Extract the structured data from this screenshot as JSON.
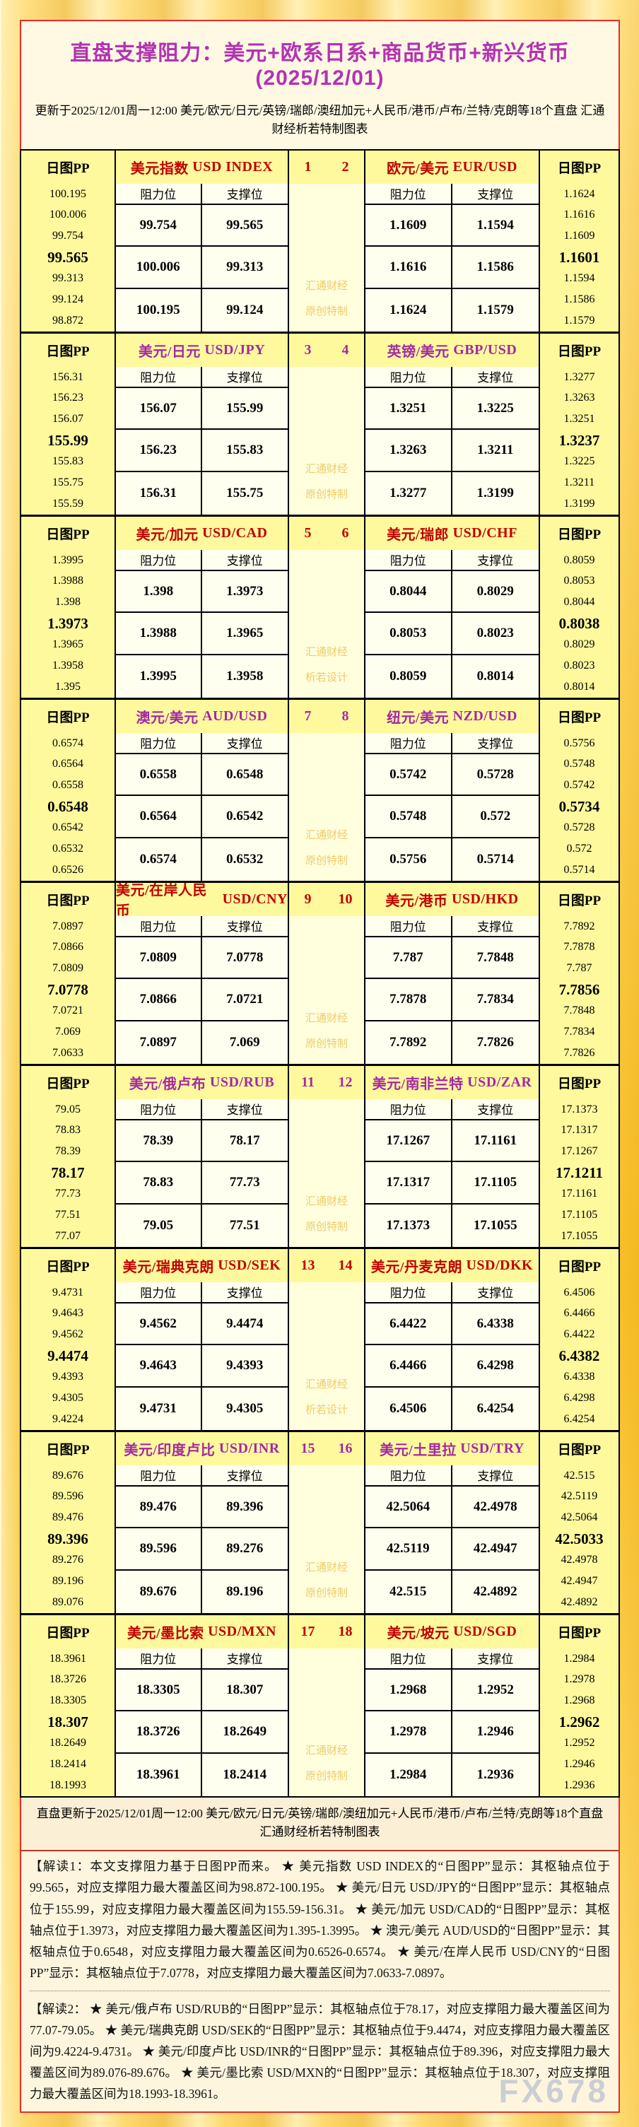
{
  "title": "直盘支撑阻力：美元+欧系日系+商品货币+新兴货币(2025/12/01)",
  "subtitle": "更新于2025/12/01周一12:00 美元/欧元/日元/英镑/瑞郎/澳纽加元+人民币/港币/卢布/兰特/克朗等18个直盘 汇通财经析若特制图表",
  "labels": {
    "pp": "日图PP",
    "resistance": "阻力位",
    "support": "支撑位",
    "watermark_line1": "汇通财经",
    "brand_watermark": "FX678"
  },
  "colors": {
    "red_accent": "#C00000",
    "purple_accent": "#A329A3",
    "title_purple": "#B233B2",
    "header_bg": "#FFF99E",
    "cell_bg": "#FFFFF0",
    "center_bg": "#FFFFDE",
    "watermark_gold": "#EDCB6B",
    "frame_border": "#E42E2E",
    "page_gold": "#F7BE24"
  },
  "blocks": [
    {
      "num_left": "1",
      "num_right": "2",
      "color": "red",
      "watermark_line2": "原创特制",
      "left": {
        "name_cn": "美元指数",
        "name_en": "USD INDEX",
        "pp": [
          "100.195",
          "100.006",
          "99.754",
          "99.565",
          "99.313",
          "99.124",
          "98.872"
        ],
        "rows": [
          [
            "99.754",
            "99.565"
          ],
          [
            "100.006",
            "99.313"
          ],
          [
            "100.195",
            "99.124"
          ]
        ]
      },
      "right": {
        "name_cn": "欧元/美元",
        "name_en": "EUR/USD",
        "pp": [
          "1.1624",
          "1.1616",
          "1.1609",
          "1.1601",
          "1.1594",
          "1.1586",
          "1.1579"
        ],
        "rows": [
          [
            "1.1609",
            "1.1594"
          ],
          [
            "1.1616",
            "1.1586"
          ],
          [
            "1.1624",
            "1.1579"
          ]
        ]
      }
    },
    {
      "num_left": "3",
      "num_right": "4",
      "color": "purple",
      "watermark_line2": "原创特制",
      "left": {
        "name_cn": "美元/日元",
        "name_en": "USD/JPY",
        "pp": [
          "156.31",
          "156.23",
          "156.07",
          "155.99",
          "155.83",
          "155.75",
          "155.59"
        ],
        "rows": [
          [
            "156.07",
            "155.99"
          ],
          [
            "156.23",
            "155.83"
          ],
          [
            "156.31",
            "155.75"
          ]
        ]
      },
      "right": {
        "name_cn": "英镑/美元",
        "name_en": "GBP/USD",
        "pp": [
          "1.3277",
          "1.3263",
          "1.3251",
          "1.3237",
          "1.3225",
          "1.3211",
          "1.3199"
        ],
        "rows": [
          [
            "1.3251",
            "1.3225"
          ],
          [
            "1.3263",
            "1.3211"
          ],
          [
            "1.3277",
            "1.3199"
          ]
        ]
      }
    },
    {
      "num_left": "5",
      "num_right": "6",
      "color": "red",
      "watermark_line2": "析若设计",
      "left": {
        "name_cn": "美元/加元",
        "name_en": "USD/CAD",
        "pp": [
          "1.3995",
          "1.3988",
          "1.398",
          "1.3973",
          "1.3965",
          "1.3958",
          "1.395"
        ],
        "rows": [
          [
            "1.398",
            "1.3973"
          ],
          [
            "1.3988",
            "1.3965"
          ],
          [
            "1.3995",
            "1.3958"
          ]
        ]
      },
      "right": {
        "name_cn": "美元/瑞郎",
        "name_en": "USD/CHF",
        "pp": [
          "0.8059",
          "0.8053",
          "0.8044",
          "0.8038",
          "0.8029",
          "0.8023",
          "0.8014"
        ],
        "rows": [
          [
            "0.8044",
            "0.8029"
          ],
          [
            "0.8053",
            "0.8023"
          ],
          [
            "0.8059",
            "0.8014"
          ]
        ]
      }
    },
    {
      "num_left": "7",
      "num_right": "8",
      "color": "purple",
      "watermark_line2": "原创特制",
      "left": {
        "name_cn": "澳元/美元",
        "name_en": "AUD/USD",
        "pp": [
          "0.6574",
          "0.6564",
          "0.6558",
          "0.6548",
          "0.6542",
          "0.6532",
          "0.6526"
        ],
        "rows": [
          [
            "0.6558",
            "0.6548"
          ],
          [
            "0.6564",
            "0.6542"
          ],
          [
            "0.6574",
            "0.6532"
          ]
        ]
      },
      "right": {
        "name_cn": "纽元/美元",
        "name_en": "NZD/USD",
        "pp": [
          "0.5756",
          "0.5748",
          "0.5742",
          "0.5734",
          "0.5728",
          "0.572",
          "0.5714"
        ],
        "rows": [
          [
            "0.5742",
            "0.5728"
          ],
          [
            "0.5748",
            "0.572"
          ],
          [
            "0.5756",
            "0.5714"
          ]
        ]
      }
    },
    {
      "num_left": "9",
      "num_right": "10",
      "color": "red",
      "watermark_line2": "原创特制",
      "left": {
        "name_cn": "美元/在岸人民币",
        "name_en": "USD/CNY",
        "pp": [
          "7.0897",
          "7.0866",
          "7.0809",
          "7.0778",
          "7.0721",
          "7.069",
          "7.0633"
        ],
        "rows": [
          [
            "7.0809",
            "7.0778"
          ],
          [
            "7.0866",
            "7.0721"
          ],
          [
            "7.0897",
            "7.069"
          ]
        ]
      },
      "right": {
        "name_cn": "美元/港币",
        "name_en": "USD/HKD",
        "pp": [
          "7.7892",
          "7.7878",
          "7.787",
          "7.7856",
          "7.7848",
          "7.7834",
          "7.7826"
        ],
        "rows": [
          [
            "7.787",
            "7.7848"
          ],
          [
            "7.7878",
            "7.7834"
          ],
          [
            "7.7892",
            "7.7826"
          ]
        ]
      }
    },
    {
      "num_left": "11",
      "num_right": "12",
      "color": "purple",
      "watermark_line2": "原创特制",
      "left": {
        "name_cn": "美元/俄卢布",
        "name_en": "USD/RUB",
        "pp": [
          "79.05",
          "78.83",
          "78.39",
          "78.17",
          "77.73",
          "77.51",
          "77.07"
        ],
        "rows": [
          [
            "78.39",
            "78.17"
          ],
          [
            "78.83",
            "77.73"
          ],
          [
            "79.05",
            "77.51"
          ]
        ]
      },
      "right": {
        "name_cn": "美元/南非兰特",
        "name_en": "USD/ZAR",
        "pp": [
          "17.1373",
          "17.1317",
          "17.1267",
          "17.1211",
          "17.1161",
          "17.1105",
          "17.1055"
        ],
        "rows": [
          [
            "17.1267",
            "17.1161"
          ],
          [
            "17.1317",
            "17.1105"
          ],
          [
            "17.1373",
            "17.1055"
          ]
        ]
      }
    },
    {
      "num_left": "13",
      "num_right": "14",
      "color": "red",
      "watermark_line2": "析若设计",
      "left": {
        "name_cn": "美元/瑞典克朗",
        "name_en": "USD/SEK",
        "pp": [
          "9.4731",
          "9.4643",
          "9.4562",
          "9.4474",
          "9.4393",
          "9.4305",
          "9.4224"
        ],
        "rows": [
          [
            "9.4562",
            "9.4474"
          ],
          [
            "9.4643",
            "9.4393"
          ],
          [
            "9.4731",
            "9.4305"
          ]
        ]
      },
      "right": {
        "name_cn": "美元/丹麦克朗",
        "name_en": "USD/DKK",
        "pp": [
          "6.4506",
          "6.4466",
          "6.4422",
          "6.4382",
          "6.4338",
          "6.4298",
          "6.4254"
        ],
        "rows": [
          [
            "6.4422",
            "6.4338"
          ],
          [
            "6.4466",
            "6.4298"
          ],
          [
            "6.4506",
            "6.4254"
          ]
        ]
      }
    },
    {
      "num_left": "15",
      "num_right": "16",
      "color": "purple",
      "watermark_line2": "原创特制",
      "left": {
        "name_cn": "美元/印度卢比",
        "name_en": "USD/INR",
        "pp": [
          "89.676",
          "89.596",
          "89.476",
          "89.396",
          "89.276",
          "89.196",
          "89.076"
        ],
        "rows": [
          [
            "89.476",
            "89.396"
          ],
          [
            "89.596",
            "89.276"
          ],
          [
            "89.676",
            "89.196"
          ]
        ]
      },
      "right": {
        "name_cn": "美元/土里拉",
        "name_en": "USD/TRY",
        "pp": [
          "42.515",
          "42.5119",
          "42.5064",
          "42.5033",
          "42.4978",
          "42.4947",
          "42.4892"
        ],
        "rows": [
          [
            "42.5064",
            "42.4978"
          ],
          [
            "42.5119",
            "42.4947"
          ],
          [
            "42.515",
            "42.4892"
          ]
        ]
      }
    },
    {
      "num_left": "17",
      "num_right": "18",
      "color": "red",
      "watermark_line2": "原创特制",
      "left": {
        "name_cn": "美元/墨比索",
        "name_en": "USD/MXN",
        "pp": [
          "18.3961",
          "18.3726",
          "18.3305",
          "18.307",
          "18.2649",
          "18.2414",
          "18.1993"
        ],
        "rows": [
          [
            "18.3305",
            "18.307"
          ],
          [
            "18.3726",
            "18.2649"
          ],
          [
            "18.3961",
            "18.2414"
          ]
        ]
      },
      "right": {
        "name_cn": "美元/坡元",
        "name_en": "USD/SGD",
        "pp": [
          "1.2984",
          "1.2978",
          "1.2968",
          "1.2962",
          "1.2952",
          "1.2946",
          "1.2936"
        ],
        "rows": [
          [
            "1.2968",
            "1.2952"
          ],
          [
            "1.2978",
            "1.2946"
          ],
          [
            "1.2984",
            "1.2936"
          ]
        ]
      }
    }
  ],
  "footer": "直盘更新于2025/12/01周一12:00 美元/欧元/日元/英镑/瑞郎/澳纽加元+人民币/港币/卢布/兰特/克朗等18个直盘 汇通财经析若特制图表",
  "notes": [
    "【解读1：本文支撑阻力基于日图PP而来。 ★ 美元指数 USD INDEX的“日图PP”显示：其枢轴点位于99.565，对应支撑阻力最大覆盖区间为98.872-100.195。 ★ 美元/日元 USD/JPY的“日图PP”显示：其枢轴点位于155.99，对应支撑阻力最大覆盖区间为155.59-156.31。 ★ 美元/加元 USD/CAD的“日图PP”显示：其枢轴点位于1.3973，对应支撑阻力最大覆盖区间为1.395-1.3995。 ★ 澳元/美元 AUD/USD的“日图PP”显示：其枢轴点位于0.6548，对应支撑阻力最大覆盖区间为0.6526-0.6574。 ★ 美元/在岸人民币 USD/CNY的“日图PP”显示：其枢轴点位于7.0778，对应支撑阻力最大覆盖区间为7.0633-7.0897。",
    "【解读2： ★ 美元/俄卢布 USD/RUB的“日图PP”显示：其枢轴点位于78.17，对应支撑阻力最大覆盖区间为77.07-79.05。 ★ 美元/瑞典克朗 USD/SEK的“日图PP”显示：其枢轴点位于9.4474，对应支撑阻力最大覆盖区间为9.4224-9.4731。 ★ 美元/印度卢比 USD/INR的“日图PP”显示：其枢轴点位于89.396，对应支撑阻力最大覆盖区间为89.076-89.676。 ★ 美元/墨比索 USD/MXN的“日图PP”显示：其枢轴点位于18.307，对应支撑阻力最大覆盖区间为18.1993-18.3961。"
  ]
}
